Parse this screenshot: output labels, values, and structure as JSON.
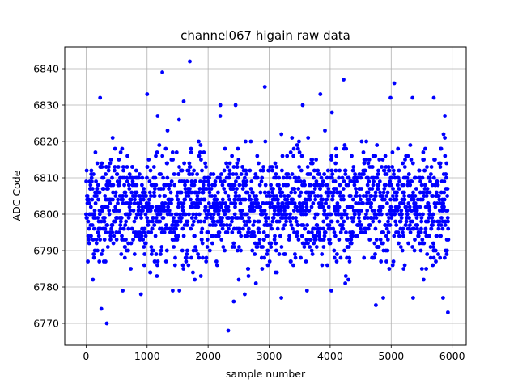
{
  "chart_data": {
    "type": "scatter",
    "title": "channel067 higain raw data",
    "xlabel": "sample number",
    "ylabel": "ADC Code",
    "xlim": [
      -350,
      6230
    ],
    "ylim": [
      6764,
      6846
    ],
    "xticks": [
      0,
      1000,
      2000,
      3000,
      4000,
      5000,
      6000
    ],
    "yticks": [
      6770,
      6780,
      6790,
      6800,
      6810,
      6820,
      6830,
      6840
    ],
    "grid": true,
    "marker_color": "#0000ff",
    "n_samples": 5940,
    "series": [
      {
        "color": "#0000ff",
        "baseline": 6802,
        "spread": 7.5,
        "x_range": [
          0,
          5940
        ],
        "outliers": [
          {
            "x": 1700,
            "y": 6842
          },
          {
            "x": 1250,
            "y": 6839
          },
          {
            "x": 4220,
            "y": 6837
          },
          {
            "x": 5050,
            "y": 6836
          },
          {
            "x": 2930,
            "y": 6835
          },
          {
            "x": 1000,
            "y": 6833
          },
          {
            "x": 3840,
            "y": 6833
          },
          {
            "x": 230,
            "y": 6832
          },
          {
            "x": 5350,
            "y": 6832
          },
          {
            "x": 5700,
            "y": 6832
          },
          {
            "x": 1600,
            "y": 6831
          },
          {
            "x": 4990,
            "y": 6832
          },
          {
            "x": 2200,
            "y": 6830
          },
          {
            "x": 2450,
            "y": 6830
          },
          {
            "x": 3550,
            "y": 6830
          },
          {
            "x": 4030,
            "y": 6828
          },
          {
            "x": 5880,
            "y": 6827
          },
          {
            "x": 2600,
            "y": 6778
          },
          {
            "x": 3200,
            "y": 6777
          },
          {
            "x": 4870,
            "y": 6777
          },
          {
            "x": 5360,
            "y": 6777
          },
          {
            "x": 5850,
            "y": 6777
          },
          {
            "x": 2420,
            "y": 6776
          },
          {
            "x": 4750,
            "y": 6775
          },
          {
            "x": 250,
            "y": 6774
          },
          {
            "x": 5930,
            "y": 6773
          },
          {
            "x": 340,
            "y": 6770
          },
          {
            "x": 2330,
            "y": 6768
          },
          {
            "x": 600,
            "y": 6779
          },
          {
            "x": 900,
            "y": 6778
          },
          {
            "x": 1420,
            "y": 6779
          },
          {
            "x": 1530,
            "y": 6779
          },
          {
            "x": 4020,
            "y": 6779
          },
          {
            "x": 3620,
            "y": 6779
          }
        ]
      }
    ]
  }
}
